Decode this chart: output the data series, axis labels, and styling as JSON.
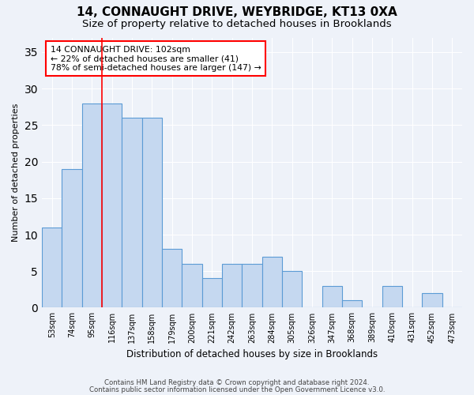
{
  "title1": "14, CONNAUGHT DRIVE, WEYBRIDGE, KT13 0XA",
  "title2": "Size of property relative to detached houses in Brooklands",
  "xlabel": "Distribution of detached houses by size in Brooklands",
  "ylabel": "Number of detached properties",
  "bins": [
    "53sqm",
    "74sqm",
    "95sqm",
    "116sqm",
    "137sqm",
    "158sqm",
    "179sqm",
    "200sqm",
    "221sqm",
    "242sqm",
    "263sqm",
    "284sqm",
    "305sqm",
    "326sqm",
    "347sqm",
    "368sqm",
    "389sqm",
    "410sqm",
    "431sqm",
    "452sqm",
    "473sqm"
  ],
  "values": [
    11,
    19,
    28,
    28,
    26,
    26,
    8,
    6,
    4,
    6,
    6,
    7,
    5,
    0,
    3,
    1,
    0,
    3,
    0,
    2,
    0
  ],
  "bar_color": "#c5d8f0",
  "bar_edge_color": "#5b9bd5",
  "red_line_index": 2,
  "annotation_text": "14 CONNAUGHT DRIVE: 102sqm\n← 22% of detached houses are smaller (41)\n78% of semi-detached houses are larger (147) →",
  "annotation_box_color": "white",
  "annotation_box_edge": "red",
  "ylim": [
    0,
    37
  ],
  "yticks": [
    0,
    5,
    10,
    15,
    20,
    25,
    30,
    35
  ],
  "footer1": "Contains HM Land Registry data © Crown copyright and database right 2024.",
  "footer2": "Contains public sector information licensed under the Open Government Licence v3.0.",
  "bg_color": "#eef2f9",
  "grid_color": "white",
  "title1_fontsize": 11,
  "title2_fontsize": 9.5
}
